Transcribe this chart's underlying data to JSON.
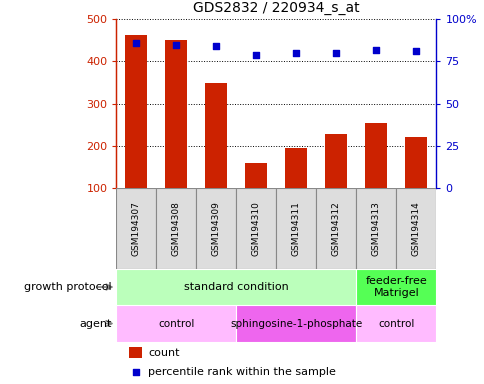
{
  "title": "GDS2832 / 220934_s_at",
  "samples": [
    "GSM194307",
    "GSM194308",
    "GSM194309",
    "GSM194310",
    "GSM194311",
    "GSM194312",
    "GSM194313",
    "GSM194314"
  ],
  "counts": [
    463,
    450,
    350,
    160,
    196,
    228,
    255,
    222
  ],
  "percentiles": [
    86,
    85,
    84,
    79,
    80,
    80,
    82,
    81
  ],
  "ymin": 100,
  "ymax": 500,
  "yticks_left": [
    100,
    200,
    300,
    400,
    500
  ],
  "yticks_right": [
    0,
    25,
    50,
    75,
    100
  ],
  "bar_color": "#cc2200",
  "dot_color": "#0000cc",
  "growth_spans": [
    [
      0,
      6,
      "standard condition",
      "#bbffbb"
    ],
    [
      6,
      8,
      "feeder-free\nMatrigel",
      "#55ff55"
    ]
  ],
  "agent_spans": [
    [
      0,
      3,
      "control",
      "#ffbbff"
    ],
    [
      3,
      6,
      "sphingosine-1-phosphate",
      "#ee66ee"
    ],
    [
      6,
      8,
      "control",
      "#ffbbff"
    ]
  ],
  "gsm_box_color": "#dddddd",
  "gsm_box_border": "#888888",
  "legend_count_color": "#cc2200",
  "legend_pct_color": "#0000cc"
}
